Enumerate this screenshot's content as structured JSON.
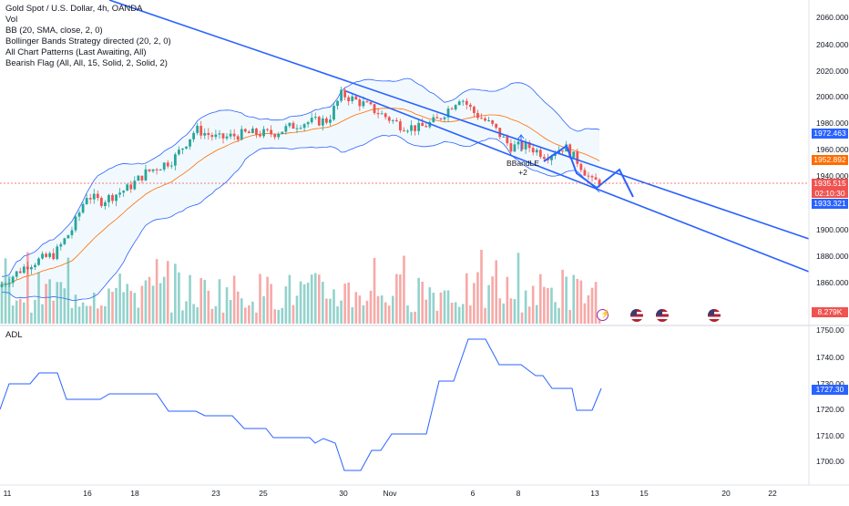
{
  "header": {
    "title": "Gold Spot / U.S. Dollar, 4h, OANDA",
    "indicators": [
      "Vol",
      "BB (20, SMA, close, 2, 0)",
      "Bollinger Bands Strategy directed (20, 2, 0)",
      "All Chart Patterns (Last Awaiting, All)",
      "Bearish Flag (All, All, 15, Solid, 2, Solid, 2)"
    ]
  },
  "adl_panel": {
    "label": "ADL",
    "last_value": "1727.30"
  },
  "price_axis": {
    "ticks": [
      "2060.000",
      "2040.000",
      "2020.000",
      "2000.000",
      "1980.000",
      "1960.000",
      "1940.000",
      "1900.000",
      "1880.000",
      "1860.000",
      "1750.00"
    ],
    "badges": {
      "bb_upper": "1972.463",
      "bb_basis": "1952.892",
      "last_price": "1935.515",
      "countdown": "02:10:30",
      "bb_lower": "1933.321",
      "volume": "8.279K"
    }
  },
  "adl_axis": {
    "ticks": [
      "1740.00",
      "1730.00",
      "1720.00",
      "1710.00",
      "1700.00"
    ]
  },
  "time_axis": {
    "ticks": [
      "11",
      "16",
      "18",
      "23",
      "25",
      "30",
      "Nov",
      "6",
      "8",
      "13",
      "15",
      "20",
      "22"
    ]
  },
  "annotation": {
    "label": "BBandLE",
    "sub": "+2"
  },
  "colors": {
    "up": "#26a69a",
    "down": "#ef5350",
    "channel": "#2962ff",
    "bb_band": "#2962ff",
    "bb_basis": "#ff6d00",
    "adl": "#2962ff"
  },
  "icons": [
    "flash-icon",
    "us-flag-icon",
    "us-flag-icon",
    "us-flag-icon"
  ]
}
